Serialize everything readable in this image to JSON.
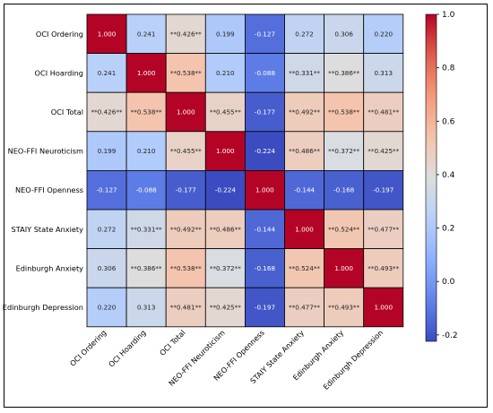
{
  "chart_data": {
    "type": "heatmap",
    "title": "",
    "xlabel": "",
    "ylabel": "",
    "variables": [
      "OCI Ordering",
      "OCI Hoarding",
      "OCI Total",
      "NEO-FFI Neuroticism",
      "NEO-FFI Openness",
      "STAIY State Anxiety",
      "Edinburgh Anxiety",
      "Edinburgh Depression"
    ],
    "values": [
      [
        1.0,
        0.241,
        0.426,
        0.199,
        -0.127,
        0.272,
        0.306,
        0.22
      ],
      [
        0.241,
        1.0,
        0.538,
        0.21,
        -0.088,
        0.331,
        0.386,
        0.313
      ],
      [
        0.426,
        0.538,
        1.0,
        0.455,
        -0.177,
        0.492,
        0.538,
        0.481
      ],
      [
        0.199,
        0.21,
        0.455,
        1.0,
        -0.224,
        0.486,
        0.372,
        0.425
      ],
      [
        -0.127,
        -0.088,
        -0.177,
        -0.224,
        1.0,
        -0.144,
        -0.168,
        -0.197
      ],
      [
        0.272,
        0.331,
        0.492,
        0.486,
        -0.144,
        1.0,
        0.524,
        0.477
      ],
      [
        0.306,
        0.386,
        0.538,
        0.372,
        -0.168,
        0.524,
        1.0,
        0.493
      ],
      [
        0.22,
        0.313,
        0.481,
        0.425,
        -0.197,
        0.477,
        0.493,
        1.0
      ]
    ],
    "labels": [
      [
        "1.000",
        "0.241",
        "**0.426**",
        "0.199",
        "-0.127",
        "0.272",
        "0.306",
        "0.220"
      ],
      [
        "0.241",
        "1.000",
        "**0.538**",
        "0.210",
        "-0.088",
        "**0.331**",
        "**0.386**",
        "0.313"
      ],
      [
        "**0.426**",
        "**0.538**",
        "1.000",
        "**0.455**",
        "-0.177",
        "**0.492**",
        "**0.538**",
        "**0.481**"
      ],
      [
        "0.199",
        "0.210",
        "**0.455**",
        "1.000",
        "-0.224",
        "**0.486**",
        "**0.372**",
        "**0.425**"
      ],
      [
        "-0.127",
        "-0.088",
        "-0.177",
        "-0.224",
        "1.000",
        "-0.144",
        "-0.168",
        "-0.197"
      ],
      [
        "0.272",
        "**0.331**",
        "**0.492**",
        "**0.486**",
        "-0.144",
        "1.000",
        "**0.524**",
        "**0.477**"
      ],
      [
        "0.306",
        "**0.386**",
        "**0.538**",
        "**0.372**",
        "-0.168",
        "**0.524**",
        "1.000",
        "**0.493**"
      ],
      [
        "0.220",
        "0.313",
        "**0.481**",
        "**0.425**",
        "-0.197",
        "**0.477**",
        "**0.493**",
        "1.000"
      ]
    ],
    "colorscale": "coolwarm",
    "vmin": -0.224,
    "vmax": 1.0,
    "colorbar_ticks": [
      "1.0",
      "0.8",
      "0.6",
      "0.4",
      "0.2",
      "0.0",
      "-0.2"
    ],
    "colorbar_tick_values": [
      1.0,
      0.8,
      0.6,
      0.4,
      0.2,
      0.0,
      -0.2
    ],
    "grid": true,
    "legend": "colorbar-right"
  }
}
